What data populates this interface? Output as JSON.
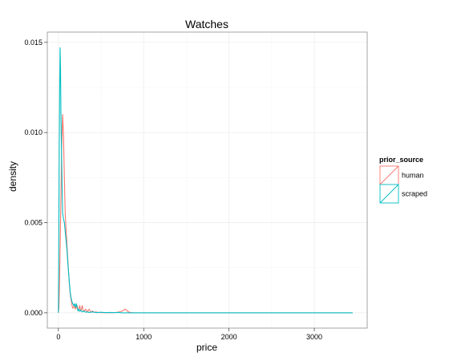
{
  "chart_data": {
    "type": "line",
    "subtype": "density",
    "title": "Watches",
    "xlabel": "price",
    "ylabel": "density",
    "xlim": [
      -130,
      3620
    ],
    "ylim": [
      -0.00085,
      0.01557
    ],
    "x_ticks": [
      0,
      1000,
      2000,
      3000
    ],
    "x_tick_labels": [
      "0",
      "1000",
      "2000",
      "3000"
    ],
    "y_ticks": [
      0.0,
      0.005,
      0.01,
      0.015
    ],
    "y_tick_labels": [
      "0.000",
      "0.005",
      "0.010",
      "0.015"
    ],
    "grid": true,
    "legend_position": "right",
    "legend_title": "prior_source",
    "series": [
      {
        "name": "human",
        "color": "#F8766D",
        "x": [
          0,
          5,
          10,
          20,
          30,
          40,
          50,
          60,
          70,
          80,
          90,
          100,
          110,
          120,
          130,
          140,
          150,
          160,
          170,
          180,
          190,
          200,
          210,
          220,
          230,
          240,
          250,
          260,
          270,
          280,
          290,
          300,
          320,
          340,
          360,
          380,
          400,
          420,
          440,
          460,
          480,
          500,
          550,
          600,
          650,
          700,
          750,
          780,
          800,
          820,
          850,
          900,
          1000,
          1500,
          2000,
          2500,
          3000,
          3450
        ],
        "values": [
          0,
          0.0002,
          0.001,
          0.0035,
          0.0065,
          0.0095,
          0.011,
          0.0098,
          0.0075,
          0.0055,
          0.0046,
          0.0038,
          0.003,
          0.0022,
          0.0015,
          0.001,
          0.0007,
          0.0004,
          0.00025,
          0.0003,
          0.0004,
          0.0002,
          0.0003,
          0.0004,
          0.0001,
          0.0002,
          0.0004,
          0.0001,
          0.0002,
          0.0004,
          0.00012,
          8e-05,
          0.0002,
          5e-05,
          0.0002,
          4e-05,
          0.0001,
          2e-05,
          5e-05,
          2e-05,
          2e-05,
          1e-05,
          1e-05,
          1e-05,
          1e-05,
          3e-05,
          0.0001,
          0.0002,
          0.00015,
          5e-05,
          1e-05,
          0,
          0,
          0,
          0,
          0,
          0,
          0
        ]
      },
      {
        "name": "scraped",
        "color": "#00BFC4",
        "x": [
          0,
          5,
          10,
          15,
          20,
          25,
          30,
          35,
          40,
          45,
          50,
          60,
          70,
          80,
          90,
          100,
          110,
          120,
          130,
          140,
          150,
          160,
          170,
          180,
          190,
          200,
          210,
          220,
          230,
          240,
          250,
          260,
          280,
          300,
          320,
          340,
          360,
          400,
          450,
          500,
          550,
          600,
          650,
          700,
          750,
          800,
          1000,
          1500,
          2000,
          2500,
          3000,
          3450
        ],
        "values": [
          0,
          0.004,
          0.009,
          0.0125,
          0.0147,
          0.0135,
          0.011,
          0.0095,
          0.008,
          0.0065,
          0.0055,
          0.0052,
          0.005,
          0.0045,
          0.004,
          0.0035,
          0.0028,
          0.0022,
          0.0016,
          0.0011,
          0.0008,
          0.0006,
          0.0005,
          0.0004,
          0.0005,
          0.0003,
          0.0005,
          0.0003,
          0.0001,
          0.0002,
          8e-05,
          0.00015,
          5e-05,
          0.0001,
          3e-05,
          5e-05,
          2e-05,
          5e-05,
          1e-05,
          3e-05,
          1e-05,
          2e-05,
          1e-05,
          2e-05,
          0,
          0,
          0,
          0,
          0,
          0,
          0,
          0
        ]
      }
    ]
  }
}
